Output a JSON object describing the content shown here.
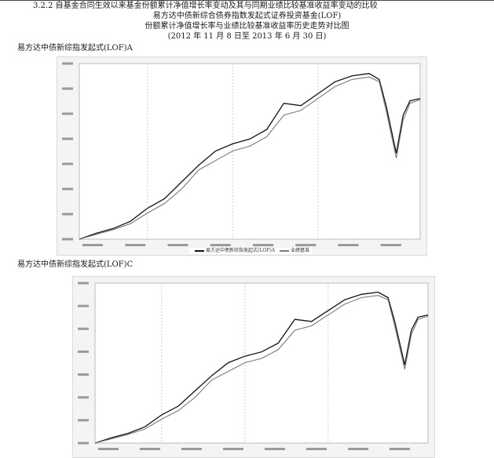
{
  "section_title": "3.2.2 自基金合同生效以来基金份额累计净值增长率变动及其与同期业绩比较基准收益率变动的比较",
  "fund_name": "易方达中债新综合债券指数发起式证券投资基金(LOF)",
  "figure_title": "份额累计净值增长率与业绩比较基准收益率历史走势对比图",
  "period": "(2012 年 11 月 8 日至 2013 年 6 月 30 日)",
  "charts": [
    {
      "label": "易方达中债新综指发起式(LOF)A",
      "legend": [
        "易方达中债新综指发起式(LOF)A",
        "业绩基准"
      ]
    },
    {
      "label": "易方达中债新综指发起式(LOF)C",
      "legend": []
    }
  ],
  "colors": {
    "fund_line": "#111111",
    "benchmark_line": "#7a7a7a",
    "grid": "#d0d0d0",
    "plot_bg": "#ffffff",
    "frame_bg": "#f4f4f4"
  },
  "chart_data": [
    {
      "type": "line",
      "title": "易方达中债新综指发起式(LOF)A",
      "x": [
        0,
        0.05,
        0.1,
        0.15,
        0.2,
        0.25,
        0.3,
        0.35,
        0.4,
        0.45,
        0.5,
        0.55,
        0.6,
        0.65,
        0.7,
        0.75,
        0.8,
        0.85,
        0.88,
        0.9,
        0.93,
        0.95,
        0.97,
        1.0
      ],
      "xlabel": "",
      "ylabel": "",
      "grid": true,
      "legend_position": "bottom",
      "series": [
        {
          "name": "易方达中债新综指发起式(LOF)A",
          "values": [
            0.0,
            0.25,
            0.45,
            0.75,
            1.3,
            1.7,
            2.4,
            3.1,
            3.7,
            4.0,
            4.2,
            4.6,
            5.7,
            5.6,
            6.1,
            6.6,
            6.85,
            6.95,
            6.7,
            5.6,
            3.6,
            5.2,
            5.8,
            5.9
          ]
        },
        {
          "name": "业绩基准",
          "values": [
            0.0,
            0.2,
            0.4,
            0.65,
            1.1,
            1.5,
            2.1,
            2.9,
            3.3,
            3.7,
            3.9,
            4.3,
            5.2,
            5.4,
            5.9,
            6.4,
            6.7,
            6.8,
            6.6,
            5.4,
            3.4,
            5.0,
            5.7,
            5.85
          ]
        }
      ]
    },
    {
      "type": "line",
      "title": "易方达中债新综指发起式(LOF)C",
      "x": [
        0,
        0.05,
        0.1,
        0.15,
        0.2,
        0.25,
        0.3,
        0.35,
        0.4,
        0.45,
        0.5,
        0.55,
        0.6,
        0.65,
        0.7,
        0.75,
        0.8,
        0.85,
        0.88,
        0.9,
        0.93,
        0.95,
        0.97,
        1.0
      ],
      "xlabel": "",
      "ylabel": "",
      "grid": true,
      "legend_position": "none",
      "series": [
        {
          "name": "",
          "values": [
            0.0,
            0.25,
            0.45,
            0.75,
            1.3,
            1.7,
            2.4,
            3.1,
            3.7,
            4.0,
            4.2,
            4.6,
            5.7,
            5.6,
            6.1,
            6.6,
            6.85,
            6.95,
            6.7,
            5.6,
            3.6,
            5.2,
            5.8,
            5.9
          ]
        },
        {
          "name": "",
          "values": [
            0.0,
            0.2,
            0.4,
            0.65,
            1.1,
            1.5,
            2.1,
            2.9,
            3.3,
            3.7,
            3.9,
            4.3,
            5.2,
            5.4,
            5.9,
            6.4,
            6.7,
            6.8,
            6.6,
            5.4,
            3.4,
            5.0,
            5.7,
            5.85
          ]
        }
      ]
    }
  ]
}
